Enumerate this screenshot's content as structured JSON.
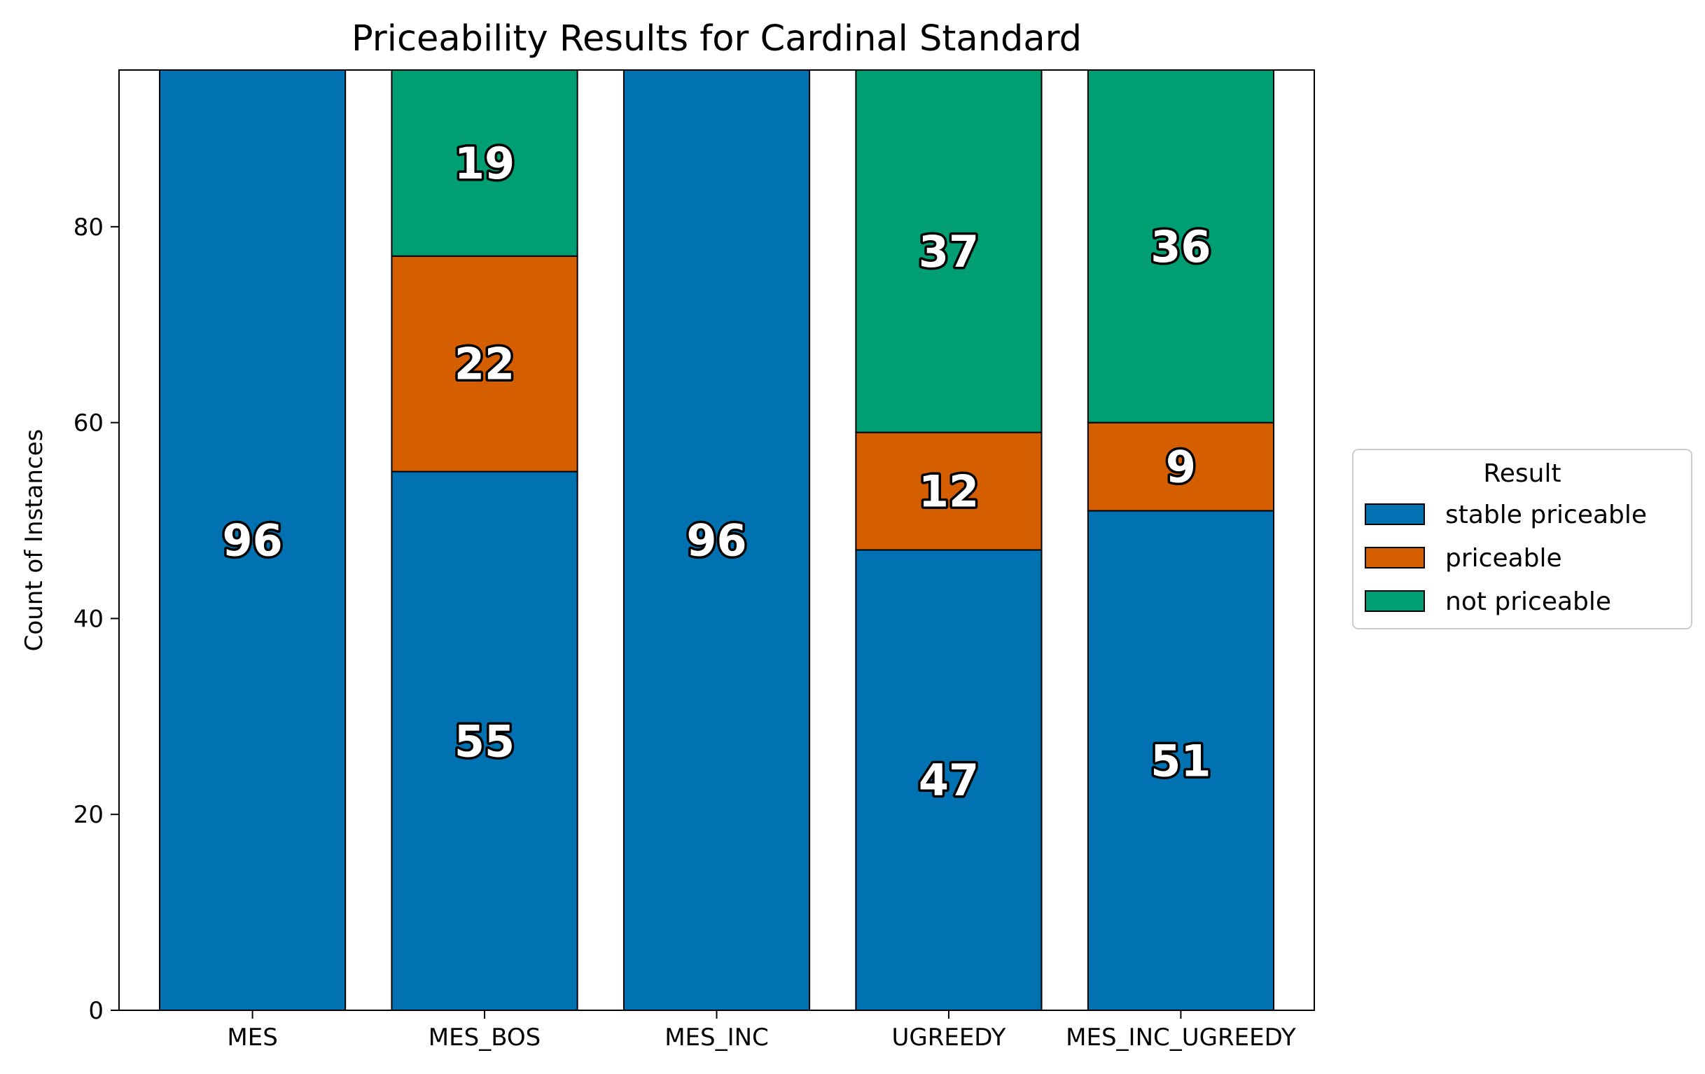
{
  "chart_data": {
    "type": "bar",
    "stacked": true,
    "title": "Priceability Results for Cardinal Standard",
    "xlabel": "",
    "ylabel": "Count of Instances",
    "ylim": [
      0,
      96
    ],
    "yticks": [
      0,
      20,
      40,
      60,
      80
    ],
    "categories": [
      "MES",
      "MES_BOS",
      "MES_INC",
      "UGREEDY",
      "MES_INC_UGREEDY"
    ],
    "series": [
      {
        "name": "stable priceable",
        "color": "#0072b2",
        "values": [
          96,
          55,
          96,
          47,
          51
        ]
      },
      {
        "name": "priceable",
        "color": "#d55e00",
        "values": [
          0,
          22,
          0,
          12,
          9
        ]
      },
      {
        "name": "not priceable",
        "color": "#009e73",
        "values": [
          0,
          19,
          0,
          37,
          36
        ]
      }
    ],
    "legend": {
      "title": "Result",
      "placement": "right"
    },
    "grid": false
  }
}
